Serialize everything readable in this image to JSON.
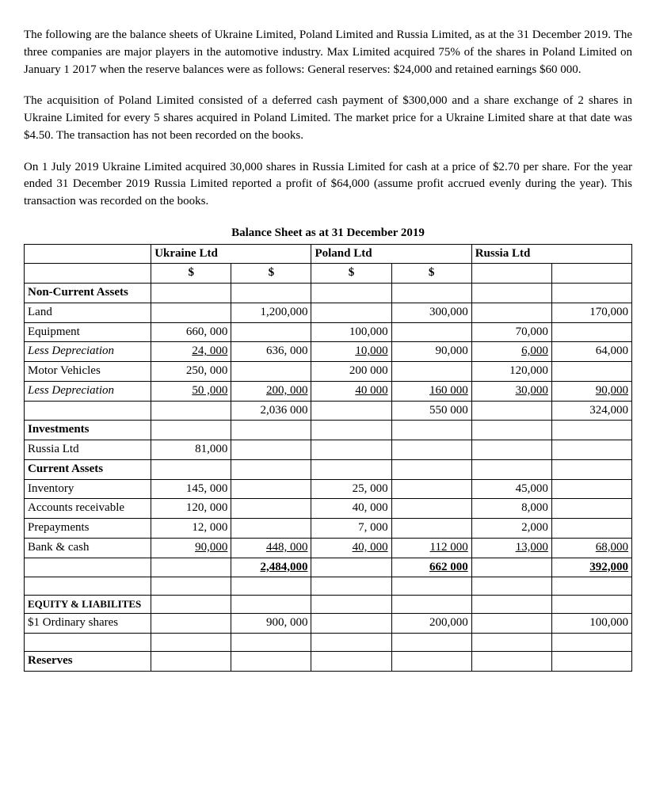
{
  "paragraphs": {
    "p1": "The following are the balance sheets of Ukraine Limited, Poland Limited and Russia Limited, as at the 31 December 2019. The three companies are major players in the automotive industry. Max Limited acquired 75% of the shares in Poland Limited on January 1 2017 when the reserve balances were as follows: General reserves: $24,000 and retained earnings $60 000.",
    "p2": "The acquisition of Poland Limited consisted of a deferred cash payment of $300,000 and a share exchange of 2 shares in Ukraine Limited for every 5 shares acquired in Poland Limited. The market price for a Ukraine Limited share at that date was $4.50. The transaction has not been recorded on the books.",
    "p3": "On 1 July 2019 Ukraine Limited acquired 30,000 shares in Russia Limited for cash at a price of $2.70 per share. For the year ended 31 December 2019 Russia Limited reported a profit of $64,000 (assume profit accrued evenly during the year). This transaction was recorded on the books."
  },
  "sheet_title": "Balance Sheet as at 31 December 2019",
  "headers": {
    "company1": "Ukraine Ltd",
    "company2": "Poland Ltd",
    "company3": "Russia Ltd",
    "currency": "$"
  },
  "rows": {
    "nca": {
      "label": "Non-Current Assets"
    },
    "land": {
      "label": "Land",
      "u2": "1,200,000",
      "p2": "300,000",
      "r2": "170,000"
    },
    "equip": {
      "label": "Equipment",
      "u1": "660, 000",
      "p1": "100,000",
      "r1": "70,000"
    },
    "dep1": {
      "label": "Less Depreciation",
      "u1": "24, 000",
      "u2": "636, 000",
      "p1": "10,000",
      "p2": "90,000",
      "r1": "6,000",
      "r2": "64,000"
    },
    "motor": {
      "label": "Motor Vehicles",
      "u1": "250, 000",
      "p1": "200 000",
      "r1": "120,000"
    },
    "dep2": {
      "label": "Less Depreciation",
      "u1": "50 ,000",
      "u2": "200, 000",
      "p1": "40 000",
      "p2": "160 000",
      "r1": "30,000",
      "r2": "90,000"
    },
    "sub1": {
      "u2": "2,036 000",
      "p2": "550 000",
      "r2": "324,000"
    },
    "inv": {
      "label": "Investments"
    },
    "russia": {
      "label": "Russia Ltd",
      "u1": "81,000"
    },
    "ca": {
      "label": "Current Assets"
    },
    "invent": {
      "label": "Inventory",
      "u1": "145, 000",
      "p1": "25, 000",
      "r1": "45,000"
    },
    "ar": {
      "label": "Accounts receivable",
      "u1": "120, 000",
      "p1": "40, 000",
      "r1": "8,000"
    },
    "prepay": {
      "label": "Prepayments",
      "u1": "12, 000",
      "p1": "7, 000",
      "r1": "2,000"
    },
    "bank": {
      "label": "Bank & cash",
      "u1": "90,000",
      "u2": "448, 000",
      "p1": "40, 000",
      "p2": "112 000",
      "r1": "13,000",
      "r2": "68,000"
    },
    "sub2": {
      "u2": "2,484,000",
      "p2": "662 000",
      "r2": "392,000"
    },
    "eql": {
      "label": "EQUITY & LIABILITES"
    },
    "ord": {
      "label": "$1 Ordinary shares",
      "u2": "900, 000",
      "p2": "200,000",
      "r2": "100,000"
    },
    "res": {
      "label": "Reserves"
    }
  }
}
